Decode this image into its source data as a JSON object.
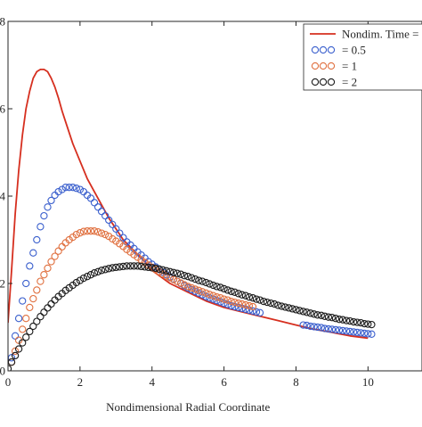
{
  "chart_data": {
    "type": "scatter",
    "title": "",
    "xlabel": "Nondimensional Radial Coordinate",
    "ylabel": "",
    "xlim": [
      0,
      11.5
    ],
    "ylim": [
      0,
      8
    ],
    "xticks": [
      0,
      2,
      4,
      6,
      8,
      10
    ],
    "yticks": [
      0,
      2,
      4,
      6,
      8
    ],
    "xtick_labels": [
      "0",
      "2",
      "4",
      "6",
      "8",
      "10"
    ],
    "ytick_labels": [
      "0",
      "2",
      "4",
      "6",
      "8"
    ],
    "grid": false,
    "legend_position": "top-right",
    "series": [
      {
        "name": "Nondim. Time =",
        "style": "line",
        "color": "#d62f1f",
        "x": [
          0,
          0.1,
          0.2,
          0.3,
          0.4,
          0.5,
          0.6,
          0.7,
          0.8,
          0.9,
          1.0,
          1.1,
          1.2,
          1.3,
          1.4,
          1.5,
          1.6,
          1.8,
          2.0,
          2.2,
          2.4,
          2.6,
          2.8,
          3.0,
          3.2,
          3.5,
          3.8,
          4.0,
          4.5,
          5.0,
          5.5,
          6.0,
          6.5,
          7.0,
          7.5,
          8.0,
          8.5,
          9.0,
          9.5,
          10.0
        ],
        "y": [
          1.1,
          2.3,
          3.6,
          4.6,
          5.4,
          6.0,
          6.4,
          6.7,
          6.85,
          6.9,
          6.9,
          6.85,
          6.7,
          6.5,
          6.25,
          5.95,
          5.7,
          5.2,
          4.8,
          4.4,
          4.1,
          3.8,
          3.5,
          3.25,
          3.0,
          2.75,
          2.5,
          2.3,
          2.0,
          1.8,
          1.6,
          1.45,
          1.35,
          1.25,
          1.15,
          1.05,
          0.95,
          0.88,
          0.8,
          0.75
        ]
      },
      {
        "name": "= 0.5",
        "style": "markers",
        "color": "#3a5fcd",
        "x": [
          0.1,
          0.2,
          0.3,
          0.4,
          0.5,
          0.6,
          0.7,
          0.8,
          0.9,
          1.0,
          1.1,
          1.2,
          1.3,
          1.4,
          1.5,
          1.6,
          1.7,
          1.8,
          1.9,
          2.0,
          2.1,
          2.2,
          2.3,
          2.4,
          2.5,
          2.6,
          2.7,
          2.8,
          2.9,
          3.0,
          3.1,
          3.2,
          3.3,
          3.4,
          3.5,
          3.6,
          3.7,
          3.8,
          3.9,
          4.0,
          4.1,
          4.2,
          4.3,
          4.4,
          4.5,
          4.6,
          4.7,
          4.8,
          4.9,
          5.0,
          5.1,
          5.2,
          5.3,
          5.4,
          5.5,
          5.6,
          5.7,
          5.8,
          5.9,
          6.0,
          6.1,
          6.2,
          6.3,
          6.4,
          6.5,
          6.6,
          6.7,
          6.8,
          6.9,
          7.0,
          8.2,
          8.3,
          8.4,
          8.5,
          8.6,
          8.7,
          8.8,
          8.9,
          9.0,
          9.1,
          9.2,
          9.3,
          9.4,
          9.5,
          9.6,
          9.7,
          9.8,
          9.9,
          10.0,
          10.1
        ],
        "y": [
          0.3,
          0.8,
          1.2,
          1.6,
          2.0,
          2.4,
          2.7,
          3.0,
          3.3,
          3.55,
          3.75,
          3.9,
          4.02,
          4.1,
          4.15,
          4.2,
          4.2,
          4.2,
          4.18,
          4.15,
          4.1,
          4.02,
          3.95,
          3.85,
          3.75,
          3.65,
          3.55,
          3.45,
          3.35,
          3.25,
          3.15,
          3.05,
          2.95,
          2.88,
          2.8,
          2.72,
          2.65,
          2.58,
          2.5,
          2.44,
          2.38,
          2.32,
          2.26,
          2.2,
          2.15,
          2.1,
          2.05,
          2.0,
          1.95,
          1.9,
          1.86,
          1.82,
          1.78,
          1.74,
          1.7,
          1.67,
          1.64,
          1.61,
          1.58,
          1.55,
          1.52,
          1.49,
          1.47,
          1.45,
          1.43,
          1.41,
          1.39,
          1.37,
          1.35,
          1.33,
          1.05,
          1.04,
          1.02,
          1.01,
          1.0,
          0.99,
          0.97,
          0.96,
          0.95,
          0.94,
          0.93,
          0.92,
          0.91,
          0.9,
          0.89,
          0.88,
          0.87,
          0.86,
          0.85,
          0.84
        ]
      },
      {
        "name": "= 1",
        "style": "markers",
        "color": "#e0703f",
        "x": [
          0.1,
          0.2,
          0.3,
          0.4,
          0.5,
          0.6,
          0.7,
          0.8,
          0.9,
          1.0,
          1.1,
          1.2,
          1.3,
          1.4,
          1.5,
          1.6,
          1.7,
          1.8,
          1.9,
          2.0,
          2.1,
          2.2,
          2.3,
          2.4,
          2.5,
          2.6,
          2.7,
          2.8,
          2.9,
          3.0,
          3.1,
          3.2,
          3.3,
          3.4,
          3.5,
          3.6,
          3.7,
          3.8,
          3.9,
          4.0,
          4.1,
          4.2,
          4.3,
          4.4,
          4.5,
          4.6,
          4.7,
          4.8,
          4.9,
          5.0,
          5.1,
          5.2,
          5.3,
          5.4,
          5.5,
          5.6,
          5.7,
          5.8,
          5.9,
          6.0,
          6.1,
          6.2,
          6.3,
          6.4,
          6.5,
          6.6,
          6.7,
          6.8
        ],
        "y": [
          0.2,
          0.45,
          0.7,
          0.95,
          1.2,
          1.45,
          1.65,
          1.85,
          2.05,
          2.2,
          2.35,
          2.5,
          2.62,
          2.74,
          2.84,
          2.93,
          3.0,
          3.06,
          3.12,
          3.16,
          3.19,
          3.2,
          3.2,
          3.2,
          3.18,
          3.15,
          3.12,
          3.08,
          3.02,
          2.97,
          2.91,
          2.85,
          2.78,
          2.72,
          2.66,
          2.6,
          2.54,
          2.48,
          2.42,
          2.37,
          2.32,
          2.27,
          2.22,
          2.17,
          2.13,
          2.09,
          2.05,
          2.01,
          1.97,
          1.93,
          1.9,
          1.87,
          1.84,
          1.81,
          1.78,
          1.75,
          1.72,
          1.69,
          1.67,
          1.64,
          1.62,
          1.59,
          1.57,
          1.55,
          1.53,
          1.51,
          1.49,
          1.47
        ]
      },
      {
        "name": "= 2",
        "style": "markers",
        "color": "#1a1a1a",
        "x": [
          0.0,
          0.1,
          0.2,
          0.3,
          0.4,
          0.5,
          0.6,
          0.7,
          0.8,
          0.9,
          1.0,
          1.1,
          1.2,
          1.3,
          1.4,
          1.5,
          1.6,
          1.7,
          1.8,
          1.9,
          2.0,
          2.1,
          2.2,
          2.3,
          2.4,
          2.5,
          2.6,
          2.7,
          2.8,
          2.9,
          3.0,
          3.1,
          3.2,
          3.3,
          3.4,
          3.5,
          3.6,
          3.7,
          3.8,
          3.9,
          4.0,
          4.1,
          4.2,
          4.3,
          4.4,
          4.5,
          4.6,
          4.7,
          4.8,
          4.9,
          5.0,
          5.1,
          5.2,
          5.3,
          5.4,
          5.5,
          5.6,
          5.7,
          5.8,
          5.9,
          6.0,
          6.1,
          6.2,
          6.3,
          6.4,
          6.5,
          6.6,
          6.7,
          6.8,
          6.9,
          7.0,
          7.1,
          7.2,
          7.3,
          7.4,
          7.5,
          7.6,
          7.7,
          7.8,
          7.9,
          8.0,
          8.1,
          8.2,
          8.3,
          8.4,
          8.5,
          8.6,
          8.7,
          8.8,
          8.9,
          9.0,
          9.1,
          9.2,
          9.3,
          9.4,
          9.5,
          9.6,
          9.7,
          9.8,
          9.9,
          10.0,
          10.1
        ],
        "y": [
          0.05,
          0.2,
          0.35,
          0.5,
          0.64,
          0.77,
          0.9,
          1.02,
          1.13,
          1.24,
          1.34,
          1.44,
          1.53,
          1.62,
          1.7,
          1.77,
          1.84,
          1.9,
          1.96,
          2.02,
          2.07,
          2.12,
          2.16,
          2.2,
          2.24,
          2.27,
          2.3,
          2.32,
          2.34,
          2.36,
          2.37,
          2.38,
          2.39,
          2.4,
          2.4,
          2.4,
          2.4,
          2.39,
          2.38,
          2.37,
          2.36,
          2.35,
          2.33,
          2.31,
          2.29,
          2.27,
          2.25,
          2.23,
          2.21,
          2.18,
          2.16,
          2.13,
          2.1,
          2.07,
          2.05,
          2.02,
          1.99,
          1.96,
          1.93,
          1.91,
          1.88,
          1.85,
          1.82,
          1.8,
          1.77,
          1.74,
          1.72,
          1.69,
          1.67,
          1.64,
          1.62,
          1.59,
          1.57,
          1.55,
          1.53,
          1.5,
          1.48,
          1.46,
          1.44,
          1.42,
          1.4,
          1.38,
          1.36,
          1.34,
          1.32,
          1.3,
          1.28,
          1.27,
          1.25,
          1.23,
          1.22,
          1.2,
          1.18,
          1.17,
          1.15,
          1.14,
          1.12,
          1.11,
          1.1,
          1.08,
          1.07,
          1.06
        ]
      }
    ]
  }
}
